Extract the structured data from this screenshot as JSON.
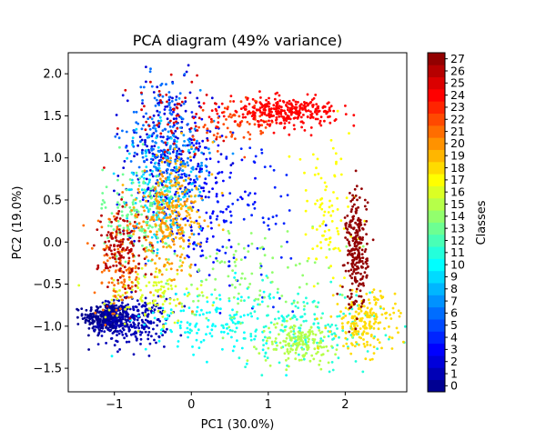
{
  "chart_data": {
    "type": "scatter",
    "title": "PCA diagram (49% variance)",
    "xlabel": "PC1 (30.0%)",
    "ylabel": "PC2 (19.0%)",
    "xlim": [
      -1.6,
      2.8
    ],
    "ylim": [
      -1.78,
      2.25
    ],
    "x_ticks": [
      -1,
      0,
      1,
      2
    ],
    "y_ticks": [
      -1.5,
      -1.0,
      -0.5,
      0.0,
      0.5,
      1.0,
      1.5,
      2.0
    ],
    "x_tick_labels": [
      "−1",
      "0",
      "1",
      "2"
    ],
    "y_tick_labels": [
      "−1.5",
      "−1.0",
      "−0.5",
      "0.0",
      "0.5",
      "1.0",
      "1.5",
      "2.0"
    ],
    "grid": false,
    "colormap": "jet",
    "colorbar": {
      "label": "Classes",
      "min": 0,
      "max": 27,
      "tick_labels": [
        "0",
        "1",
        "2",
        "3",
        "4",
        "5",
        "6",
        "7",
        "8",
        "9",
        "10",
        "11",
        "12",
        "13",
        "14",
        "15",
        "16",
        "17",
        "18",
        "19",
        "20",
        "21",
        "22",
        "23",
        "24",
        "25",
        "26",
        "27"
      ]
    },
    "clusters": [
      {
        "class": 0,
        "cx": -1.1,
        "cy": -0.9,
        "sx": 0.15,
        "sy": 0.09,
        "n": 320
      },
      {
        "class": 1,
        "cx": -0.75,
        "cy": -0.95,
        "sx": 0.22,
        "sy": 0.14,
        "n": 260
      },
      {
        "class": 2,
        "cx": -0.3,
        "cy": 1.0,
        "sx": 0.28,
        "sy": 0.45,
        "n": 220
      },
      {
        "class": 3,
        "cx": 0.05,
        "cy": 0.6,
        "sx": 0.35,
        "sy": 0.55,
        "n": 160
      },
      {
        "class": 4,
        "cx": 0.6,
        "cy": 0.3,
        "sx": 0.5,
        "sy": 0.6,
        "n": 90
      },
      {
        "class": 6,
        "cx": -0.4,
        "cy": 1.3,
        "sx": 0.22,
        "sy": 0.35,
        "n": 150
      },
      {
        "class": 7,
        "cx": -0.1,
        "cy": 0.9,
        "sx": 0.2,
        "sy": 0.35,
        "n": 110
      },
      {
        "class": 9,
        "cx": -0.45,
        "cy": 0.6,
        "sx": 0.25,
        "sy": 0.35,
        "n": 130
      },
      {
        "class": 10,
        "cx": 0.3,
        "cy": -0.95,
        "sx": 0.45,
        "sy": 0.22,
        "n": 150
      },
      {
        "class": 11,
        "cx": 1.5,
        "cy": -1.0,
        "sx": 0.5,
        "sy": 0.22,
        "n": 170
      },
      {
        "class": 13,
        "cx": -0.65,
        "cy": 0.3,
        "sx": 0.25,
        "sy": 0.3,
        "n": 170
      },
      {
        "class": 14,
        "cx": 0.8,
        "cy": -0.4,
        "sx": 0.5,
        "sy": 0.3,
        "n": 110
      },
      {
        "class": 15,
        "cx": 1.4,
        "cy": -1.2,
        "sx": 0.25,
        "sy": 0.12,
        "n": 160
      },
      {
        "class": 16,
        "cx": -0.5,
        "cy": -0.6,
        "sx": 0.3,
        "sy": 0.18,
        "n": 120
      },
      {
        "class": 17,
        "cx": 1.75,
        "cy": 0.3,
        "sx": 0.22,
        "sy": 0.45,
        "n": 90
      },
      {
        "class": 18,
        "cx": 2.25,
        "cy": -0.95,
        "sx": 0.2,
        "sy": 0.18,
        "n": 190
      },
      {
        "class": 19,
        "cx": -0.2,
        "cy": 0.4,
        "sx": 0.25,
        "sy": 0.35,
        "n": 150
      },
      {
        "class": 20,
        "cx": -0.35,
        "cy": 0.2,
        "sx": 0.22,
        "sy": 0.3,
        "n": 150
      },
      {
        "class": 21,
        "cx": -0.95,
        "cy": -0.3,
        "sx": 0.15,
        "sy": 0.3,
        "n": 110
      },
      {
        "class": 22,
        "cx": 0.6,
        "cy": 1.4,
        "sx": 0.25,
        "sy": 0.15,
        "n": 70
      },
      {
        "class": 24,
        "cx": 1.2,
        "cy": 1.55,
        "sx": 0.35,
        "sy": 0.08,
        "n": 320
      },
      {
        "class": 25,
        "cx": -0.3,
        "cy": 1.5,
        "sx": 0.35,
        "sy": 0.25,
        "n": 60
      },
      {
        "class": 26,
        "cx": -0.9,
        "cy": -0.1,
        "sx": 0.15,
        "sy": 0.25,
        "n": 130
      },
      {
        "class": 27,
        "cx": 2.15,
        "cy": -0.1,
        "sx": 0.07,
        "sy": 0.35,
        "n": 250
      }
    ]
  }
}
